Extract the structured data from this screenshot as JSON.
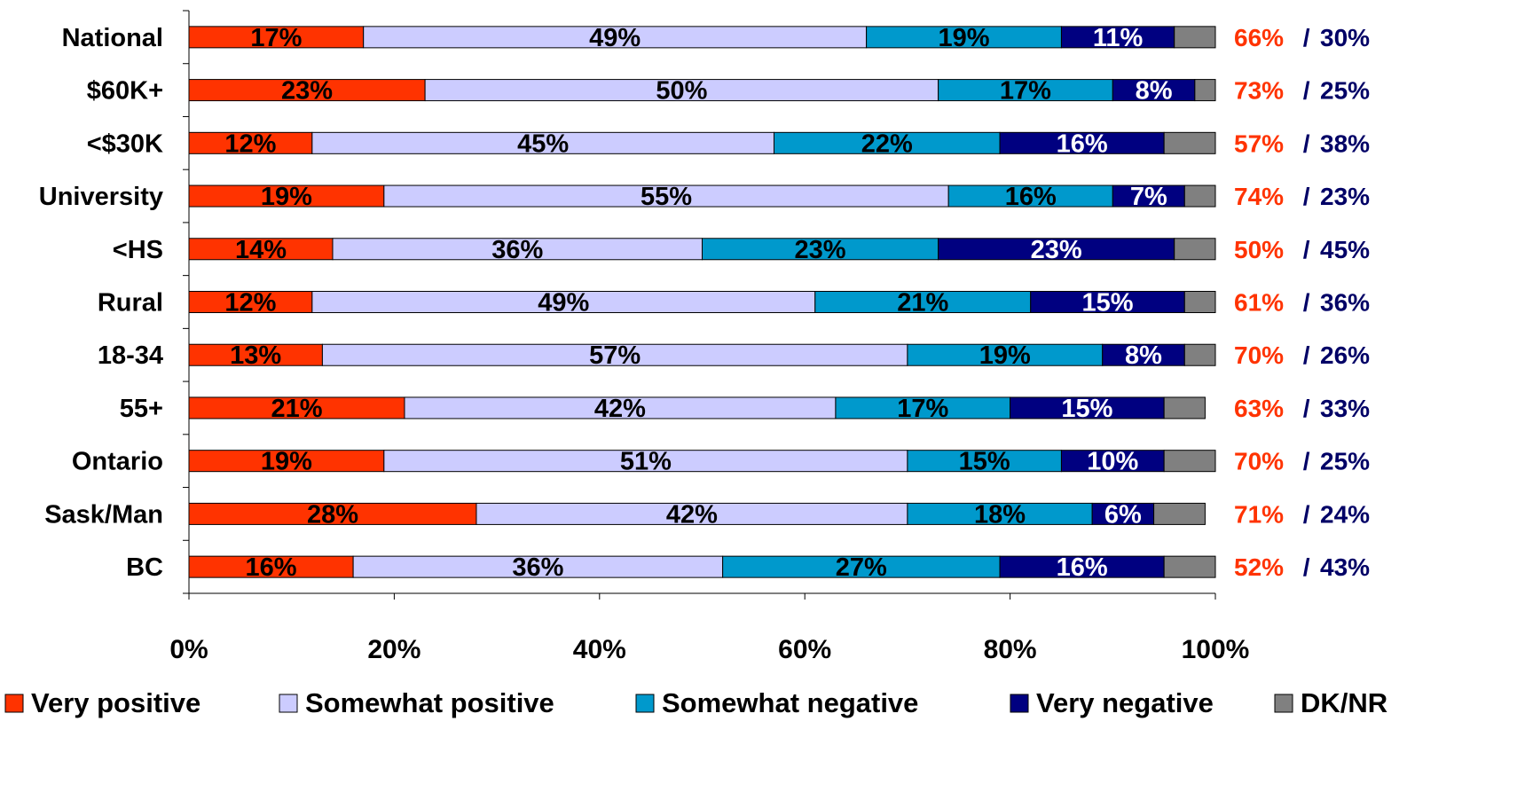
{
  "chart_data": {
    "type": "bar",
    "orientation": "horizontal",
    "stacked": true,
    "percent_stacked": true,
    "categories": [
      "National",
      "$60K+",
      "<$30K",
      "University",
      "<HS",
      "Rural",
      "18-34",
      "55+",
      "Ontario",
      "Sask/Man",
      "BC"
    ],
    "series": [
      {
        "name": "Very positive",
        "color": "#ff3300",
        "values": [
          17,
          23,
          12,
          19,
          14,
          12,
          13,
          21,
          19,
          28,
          16
        ]
      },
      {
        "name": "Somewhat positive",
        "color": "#ccccff",
        "values": [
          49,
          50,
          45,
          55,
          36,
          49,
          57,
          42,
          51,
          42,
          36
        ]
      },
      {
        "name": "Somewhat negative",
        "color": "#0099cc",
        "values": [
          19,
          17,
          22,
          16,
          23,
          21,
          19,
          17,
          15,
          18,
          27
        ]
      },
      {
        "name": "Very negative",
        "color": "#000080",
        "values": [
          11,
          8,
          16,
          7,
          23,
          15,
          8,
          15,
          10,
          6,
          16
        ]
      },
      {
        "name": "DK/NR",
        "color": "#808080",
        "values": [
          4,
          2,
          5,
          3,
          4,
          3,
          3,
          4,
          5,
          5,
          5
        ]
      }
    ],
    "value_labels": [
      [
        "17%",
        "49%",
        "19%",
        "11%"
      ],
      [
        "23%",
        "50%",
        "17%",
        "8%"
      ],
      [
        "12%",
        "45%",
        "22%",
        "16%"
      ],
      [
        "19%",
        "55%",
        "16%",
        "7%"
      ],
      [
        "14%",
        "36%",
        "23%",
        "23%"
      ],
      [
        "12%",
        "49%",
        "21%",
        "15%"
      ],
      [
        "13%",
        "57%",
        "19%",
        "8%"
      ],
      [
        "21%",
        "42%",
        "17%",
        "15%"
      ],
      [
        "19%",
        "51%",
        "15%",
        "10%"
      ],
      [
        "28%",
        "42%",
        "18%",
        "6%"
      ],
      [
        "16%",
        "36%",
        "27%",
        "16%"
      ]
    ],
    "totals": {
      "positive": [
        "66%",
        "73%",
        "57%",
        "74%",
        "50%",
        "61%",
        "70%",
        "63%",
        "70%",
        "71%",
        "52%"
      ],
      "separator": " / ",
      "negative": [
        "30%",
        "25%",
        "38%",
        "23%",
        "45%",
        "36%",
        "26%",
        "33%",
        "25%",
        "24%",
        "43%"
      ]
    },
    "x_ticks": [
      "0%",
      "20%",
      "40%",
      "60%",
      "80%",
      "100%"
    ],
    "xlim": [
      0,
      100
    ],
    "grid": false,
    "legend_position": "bottom",
    "title": "",
    "xlabel": "",
    "ylabel": ""
  },
  "colors": {
    "positive_total": "#ff3300",
    "negative_total": "#000066",
    "text": "#000000",
    "value_label_on_light": "#000000",
    "value_label_on_dark": "#ffffff",
    "legend_swatch_border": "#000000"
  }
}
